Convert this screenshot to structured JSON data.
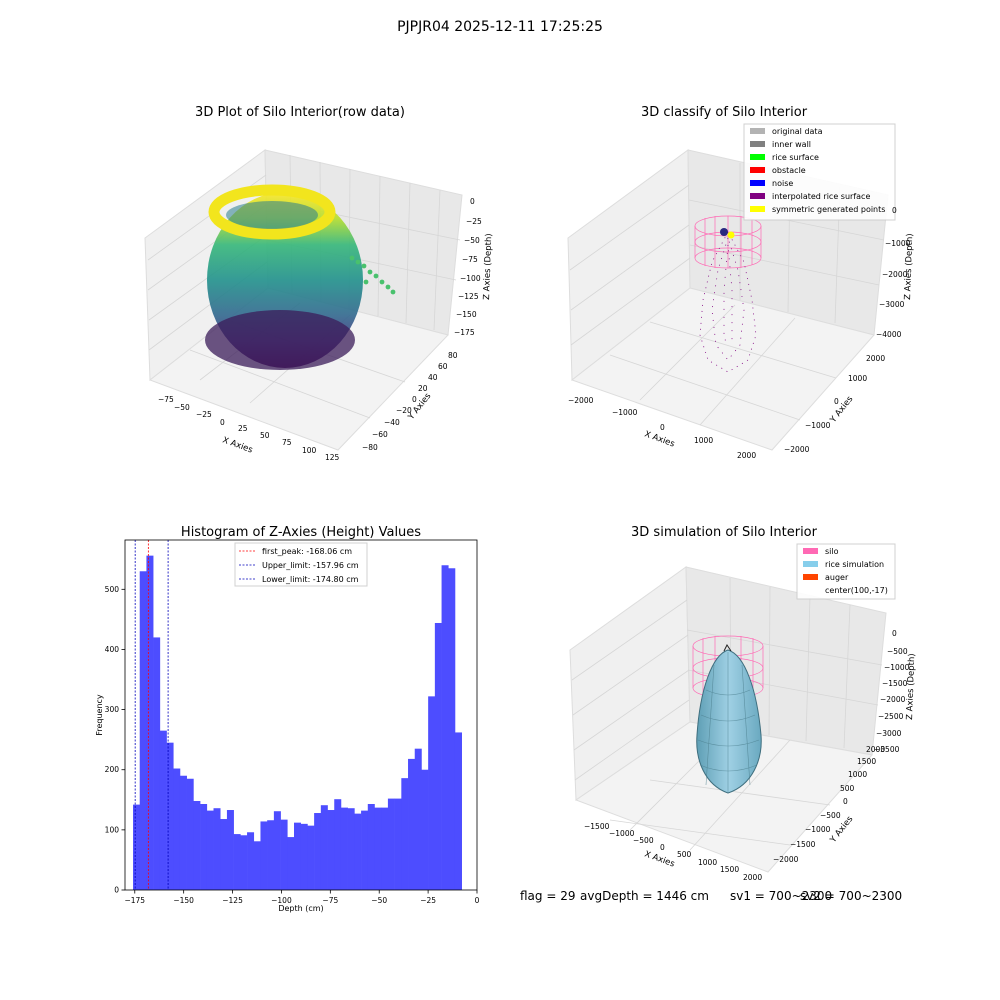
{
  "suptitle": "PJPJR04 2025-12-11 17:25:25",
  "footer": {
    "flag": "flag = 29",
    "avg": "avgDepth = 1446 cm",
    "sv1": "sv1 = 700~2300",
    "sv2": "sv2 = 700~2300"
  },
  "chart_data": [
    {
      "type": "scatter",
      "title": "3D Plot of Silo Interior(row data)",
      "xlabel": "X Axies",
      "ylabel": "Y Axies",
      "zlabel": "Z Axies (Depth)",
      "xticks": [
        "−75",
        "−50",
        "−25",
        "0",
        "25",
        "50",
        "75",
        "100",
        "125"
      ],
      "yticks": [
        "−80",
        "−60",
        "−40",
        "−20",
        "0",
        "20",
        "40",
        "60",
        "80"
      ],
      "zticks": [
        "0",
        "−25",
        "−50",
        "−75",
        "−100",
        "−125",
        "−150",
        "−175"
      ],
      "colormap": "viridis"
    },
    {
      "type": "scatter",
      "title": "3D classify of Silo Interior",
      "xlabel": "X Axies",
      "ylabel": "Y Axies",
      "zlabel": "Z Axies (Depth)",
      "xticks": [
        "−2000",
        "−1000",
        "0",
        "1000",
        "2000"
      ],
      "yticks": [
        "−2000",
        "−1000",
        "0",
        "1000",
        "2000"
      ],
      "zticks": [
        "0",
        "−1000",
        "−2000",
        "−3000",
        "−4000"
      ],
      "legend": [
        {
          "label": "original data",
          "color": "#b3b3b3"
        },
        {
          "label": "inner wall",
          "color": "#808080"
        },
        {
          "label": "rice surface",
          "color": "#00ff00"
        },
        {
          "label": "obstacle",
          "color": "#ff0000"
        },
        {
          "label": "noise",
          "color": "#0000ff"
        },
        {
          "label": "interpolated rice surface",
          "color": "#800080"
        },
        {
          "label": "symmetric generated points",
          "color": "#ffff00"
        }
      ]
    },
    {
      "type": "bar",
      "title": "Histogram of Z-Axies (Height) Values",
      "xlabel": "Depth (cm)",
      "ylabel": "Frequency",
      "xlim": [
        -180,
        0
      ],
      "ylim": [
        0,
        582
      ],
      "xticks": [
        -175,
        -150,
        -125,
        -100,
        -75,
        -50,
        -25,
        0
      ],
      "xtick_labels": [
        "−175",
        "−150",
        "−125",
        "−100",
        "−75",
        "−50",
        "−25",
        "0"
      ],
      "yticks": [
        0,
        100,
        200,
        300,
        400,
        500
      ],
      "yticklabels": [
        "0",
        "100",
        "200",
        "300",
        "400",
        "500"
      ],
      "bar_color": "#4d4dff",
      "bins": {
        "start": -175.9,
        "width": 3.43,
        "values": [
          142,
          530,
          556,
          420,
          265,
          245,
          202,
          190,
          185,
          148,
          143,
          132,
          136,
          118,
          133,
          93,
          91,
          96,
          81,
          114,
          116,
          131,
          117,
          88,
          112,
          110,
          107,
          128,
          141,
          133,
          151,
          137,
          136,
          127,
          132,
          143,
          137,
          137,
          152,
          152,
          186,
          218,
          235,
          200,
          322,
          444,
          540,
          535,
          262
        ]
      },
      "lines": [
        {
          "label": "first_peak: -168.06 cm",
          "x": -168.06,
          "color": "#ff0000"
        },
        {
          "label": "Upper_limit: -157.96 cm",
          "x": -157.96,
          "color": "#0000bb"
        },
        {
          "label": "Lower_limit: -174.80 cm",
          "x": -174.8,
          "color": "#0000bb"
        }
      ]
    },
    {
      "type": "scatter",
      "title": "3D simulation of Silo Interior",
      "xlabel": "X Axies",
      "ylabel": "Y Axies",
      "zlabel": "Z Axies (Depth)",
      "xticks": [
        "−1500",
        "−1000",
        "−500",
        "0",
        "500",
        "1000",
        "1500",
        "2000"
      ],
      "yticks": [
        "−2000",
        "−1500",
        "−1000",
        "−500",
        "0",
        "500",
        "1000",
        "1500",
        "2000"
      ],
      "zticks": [
        "0",
        "−500",
        "−1000",
        "−1500",
        "−2000",
        "−2500",
        "−3000",
        "−3500"
      ],
      "legend": [
        {
          "label": "silo",
          "color": "#ff69b4"
        },
        {
          "label": "rice simulation",
          "color": "#87ceeb"
        },
        {
          "label": "auger",
          "color": "#ff4500"
        },
        {
          "label": "center(100,-17)",
          "color": ""
        }
      ]
    }
  ]
}
